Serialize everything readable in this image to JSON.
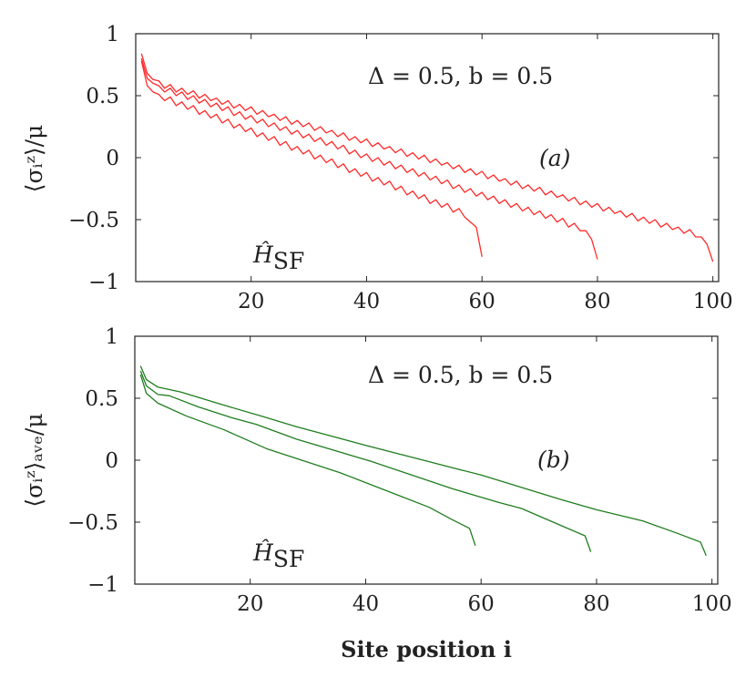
{
  "chart_data": [
    {
      "type": "line",
      "panel_label": "(a)",
      "ylabel": "⟨σᵢᶻ⟩/μ",
      "xlabel": "",
      "annotation_params": "Δ = 0.5,  b = 0.5",
      "annotation_hamiltonian": {
        "symbol": "Ĥ",
        "subscript": "SF"
      },
      "xlim": [
        0,
        101
      ],
      "ylim": [
        -1,
        1
      ],
      "xticks": [
        20,
        40,
        60,
        80,
        100
      ],
      "yticks": [
        -1,
        -0.5,
        0,
        0.5,
        1
      ],
      "ytick_labels": [
        "−1",
        "−0.5",
        "0",
        "0.5",
        "1"
      ],
      "xtick_labels": [
        "20",
        "40",
        "60",
        "80",
        "100"
      ],
      "grid": false,
      "color": "#ff2a2a",
      "series": [
        {
          "x_start": 1,
          "y": [
            0.84,
            0.68,
            0.63,
            0.62,
            0.56,
            0.59,
            0.53,
            0.56,
            0.51,
            0.54,
            0.48,
            0.51,
            0.46,
            0.48,
            0.43,
            0.46,
            0.4,
            0.43,
            0.38,
            0.41,
            0.35,
            0.38,
            0.33,
            0.35,
            0.3,
            0.33,
            0.27,
            0.3,
            0.25,
            0.28,
            0.22,
            0.25,
            0.2,
            0.22,
            0.17,
            0.2,
            0.14,
            0.17,
            0.12,
            0.15,
            0.09,
            0.12,
            0.07,
            0.09,
            0.04,
            0.07,
            0.01,
            0.04,
            -0.01,
            0.02,
            -0.04,
            -0.01,
            -0.06,
            -0.04,
            -0.09,
            -0.06,
            -0.12,
            -0.09,
            -0.14,
            -0.11,
            -0.17,
            -0.14,
            -0.19,
            -0.17,
            -0.22,
            -0.19,
            -0.25,
            -0.22,
            -0.27,
            -0.24,
            -0.3,
            -0.27,
            -0.32,
            -0.3,
            -0.35,
            -0.32,
            -0.38,
            -0.35,
            -0.4,
            -0.37,
            -0.43,
            -0.4,
            -0.45,
            -0.43,
            -0.48,
            -0.45,
            -0.51,
            -0.48,
            -0.53,
            -0.5,
            -0.56,
            -0.53,
            -0.58,
            -0.56,
            -0.61,
            -0.58,
            -0.64,
            -0.64,
            -0.7,
            -0.84
          ]
        },
        {
          "x_start": 1,
          "y": [
            0.8,
            0.64,
            0.6,
            0.58,
            0.53,
            0.56,
            0.5,
            0.53,
            0.47,
            0.5,
            0.44,
            0.47,
            0.41,
            0.44,
            0.38,
            0.41,
            0.34,
            0.37,
            0.31,
            0.34,
            0.28,
            0.31,
            0.25,
            0.28,
            0.22,
            0.25,
            0.19,
            0.22,
            0.16,
            0.19,
            0.13,
            0.16,
            0.1,
            0.13,
            0.07,
            0.1,
            0.03,
            0.06,
            0.0,
            0.03,
            -0.03,
            0.0,
            -0.06,
            -0.03,
            -0.09,
            -0.06,
            -0.12,
            -0.09,
            -0.15,
            -0.12,
            -0.18,
            -0.15,
            -0.21,
            -0.18,
            -0.25,
            -0.22,
            -0.28,
            -0.25,
            -0.31,
            -0.28,
            -0.34,
            -0.31,
            -0.37,
            -0.34,
            -0.4,
            -0.37,
            -0.43,
            -0.4,
            -0.46,
            -0.43,
            -0.49,
            -0.46,
            -0.52,
            -0.49,
            -0.56,
            -0.53,
            -0.59,
            -0.59,
            -0.66,
            -0.82
          ]
        },
        {
          "x_start": 1,
          "y": [
            0.78,
            0.58,
            0.53,
            0.51,
            0.46,
            0.49,
            0.42,
            0.45,
            0.39,
            0.42,
            0.35,
            0.38,
            0.32,
            0.35,
            0.28,
            0.31,
            0.24,
            0.27,
            0.21,
            0.24,
            0.17,
            0.2,
            0.14,
            0.17,
            0.1,
            0.13,
            0.06,
            0.09,
            0.03,
            0.06,
            -0.01,
            0.02,
            -0.04,
            -0.01,
            -0.08,
            -0.05,
            -0.12,
            -0.09,
            -0.15,
            -0.12,
            -0.19,
            -0.16,
            -0.22,
            -0.19,
            -0.26,
            -0.23,
            -0.3,
            -0.27,
            -0.33,
            -0.3,
            -0.37,
            -0.34,
            -0.4,
            -0.37,
            -0.44,
            -0.41,
            -0.48,
            -0.52,
            -0.56,
            -0.8
          ]
        }
      ]
    },
    {
      "type": "line",
      "panel_label": "(b)",
      "ylabel": "⟨σᵢᶻ⟩ₐᵥₑ/μ",
      "xlabel": "Site position i",
      "annotation_params": "Δ = 0.5,  b = 0.5",
      "annotation_hamiltonian": {
        "symbol": "Ĥ",
        "subscript": "SF"
      },
      "xlim": [
        0,
        101
      ],
      "ylim": [
        -1,
        1
      ],
      "xticks": [
        20,
        40,
        60,
        80,
        100
      ],
      "yticks": [
        -1,
        -0.5,
        0,
        0.5,
        1
      ],
      "ytick_labels": [
        "−1",
        "−0.5",
        "0",
        "0.5",
        "1"
      ],
      "xtick_labels": [
        "20",
        "40",
        "60",
        "80",
        "100"
      ],
      "grid": false,
      "color": "#1f7d1f",
      "series": [
        {
          "x": [
            1,
            2,
            4,
            8,
            15,
            22,
            28,
            40,
            55,
            60,
            74,
            80,
            88,
            94,
            98,
            99
          ],
          "y": [
            0.76,
            0.65,
            0.59,
            0.55,
            0.45,
            0.355,
            0.27,
            0.12,
            -0.06,
            -0.12,
            -0.32,
            -0.4,
            -0.49,
            -0.59,
            -0.66,
            -0.77
          ]
        },
        {
          "x": [
            1,
            2,
            4,
            6,
            11,
            17,
            21,
            28,
            41,
            55,
            63,
            67,
            74,
            78,
            79
          ],
          "y": [
            0.72,
            0.6,
            0.53,
            0.52,
            0.43,
            0.34,
            0.29,
            0.17,
            -0.01,
            -0.23,
            -0.34,
            -0.39,
            -0.53,
            -0.61,
            -0.74
          ]
        },
        {
          "x": [
            1,
            2,
            4,
            9,
            15.5,
            23,
            35.5,
            46,
            51,
            55,
            58,
            59
          ],
          "y": [
            0.69,
            0.54,
            0.46,
            0.355,
            0.245,
            0.09,
            -0.1,
            -0.29,
            -0.38,
            -0.48,
            -0.55,
            -0.69
          ]
        }
      ]
    }
  ]
}
